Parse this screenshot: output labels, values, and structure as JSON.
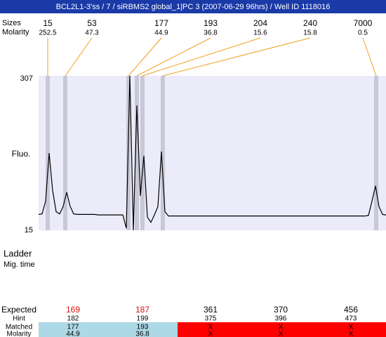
{
  "header": {
    "title": "BCL2L1-3'ss / 7 / siRBMS2 global_1|PC 3 (2007-06-29 96hrs) / Well ID 1118016"
  },
  "peaks": {
    "size_label": "Sizes",
    "molarity_label": "Molarity",
    "sizes": [
      "15",
      "53",
      "177",
      "193",
      "204",
      "240",
      "7000"
    ],
    "molarity": [
      "252.5",
      "47.3",
      "44.9",
      "36.8",
      "15.6",
      "15.8",
      "0.5"
    ]
  },
  "chart_data": {
    "type": "line",
    "y_label": "Fluo.",
    "ylim": [
      15,
      307
    ],
    "yticks": [
      15,
      307
    ],
    "color": "#000000",
    "band_color": "#c8c8d8",
    "background": "#ebebfa",
    "values": [
      45,
      46,
      70,
      161,
      90,
      50,
      46,
      60,
      87,
      60,
      46,
      45,
      45,
      45,
      45,
      45,
      45,
      44,
      44,
      44,
      44,
      44,
      44,
      44,
      44,
      19,
      307,
      15,
      251,
      80,
      156,
      40,
      30,
      44,
      60,
      164,
      50,
      42,
      42,
      42,
      42,
      42,
      42,
      42,
      42,
      42,
      42,
      42,
      42,
      42,
      42,
      42,
      42,
      42,
      42,
      42,
      42,
      42,
      42,
      42,
      42,
      42,
      42,
      42,
      42,
      42,
      42,
      42,
      42,
      42,
      42,
      42,
      42,
      42,
      42,
      42,
      42,
      42,
      42,
      42,
      42,
      42,
      42,
      42,
      42,
      42,
      42,
      42,
      42,
      42,
      42,
      42,
      42,
      42,
      43,
      70,
      99,
      60,
      45,
      44
    ]
  },
  "ladder": {
    "title": "Ladder",
    "subtitle": "Mig. time"
  },
  "table": {
    "row_labels": [
      "Expected",
      "Hint",
      "Matched",
      "Molarity"
    ],
    "expected": [
      "169",
      "187",
      "361",
      "370",
      "456"
    ],
    "expected_colors": [
      "#e01010",
      "#e01010",
      "#000000",
      "#000000",
      "#000000"
    ],
    "hint": [
      "182",
      "199",
      "375",
      "396",
      "473"
    ],
    "matched": [
      "177",
      "193",
      "X",
      "X",
      "X"
    ],
    "molarity": [
      "44.9",
      "36.8",
      "X",
      "X",
      "X"
    ],
    "fills": [
      "#add8e6",
      "#add8e6",
      "#ff0000",
      "#ff0000",
      "#ff0000"
    ]
  }
}
